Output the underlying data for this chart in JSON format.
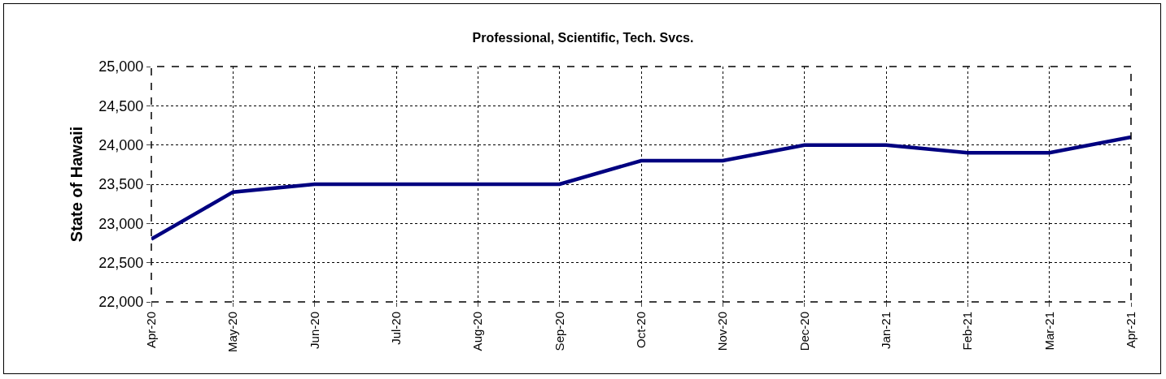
{
  "chart_data": {
    "type": "line",
    "title": "Professional, Scientific, Tech. Svcs.",
    "ylabel": "State of Hawaii",
    "categories": [
      "Apr-20",
      "May-20",
      "Jun-20",
      "Jul-20",
      "Aug-20",
      "Sep-20",
      "Oct-20",
      "Nov-20",
      "Dec-20",
      "Jan-21",
      "Feb-21",
      "Mar-21",
      "Apr-21"
    ],
    "series": [
      {
        "color": "#000080",
        "values": [
          22800,
          23400,
          23500,
          23500,
          23500,
          23500,
          23800,
          23800,
          24000,
          24000,
          23900,
          23900,
          24100
        ]
      }
    ],
    "ylim": [
      22000,
      25000
    ],
    "yticks": [
      {
        "value": 22000,
        "label": "22,000"
      },
      {
        "value": 22500,
        "label": "22,500"
      },
      {
        "value": 23000,
        "label": "23,000"
      },
      {
        "value": 23500,
        "label": "23,500"
      },
      {
        "value": 24000,
        "label": "24,000"
      },
      {
        "value": 24500,
        "label": "24,500"
      },
      {
        "value": 25000,
        "label": "25,000"
      }
    ],
    "grid": true
  }
}
